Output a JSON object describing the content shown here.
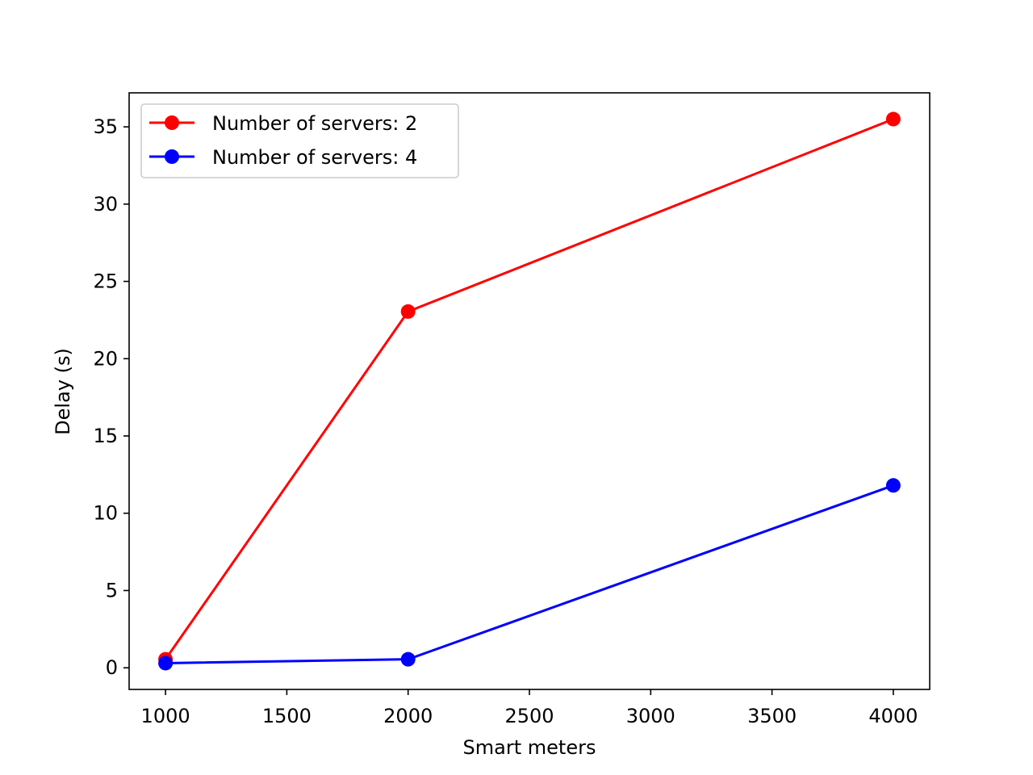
{
  "chart_data": {
    "type": "line",
    "xlabel": "Smart meters",
    "ylabel": "Delay (s)",
    "xlim": [
      850,
      4150
    ],
    "ylim": [
      -1.4,
      37.2
    ],
    "xticks": [
      1000,
      1500,
      2000,
      2500,
      3000,
      3500,
      4000
    ],
    "yticks": [
      0,
      5,
      10,
      15,
      20,
      25,
      30,
      35
    ],
    "grid": false,
    "legend_position": "upper-left",
    "series": [
      {
        "name": "Number of servers: 2",
        "color": "#ff0000",
        "x": [
          1000,
          2000,
          4000
        ],
        "y": [
          0.55,
          23.05,
          35.5
        ]
      },
      {
        "name": "Number of servers: 4",
        "color": "#0000ff",
        "x": [
          1000,
          2000,
          4000
        ],
        "y": [
          0.3,
          0.55,
          11.8
        ]
      }
    ]
  }
}
